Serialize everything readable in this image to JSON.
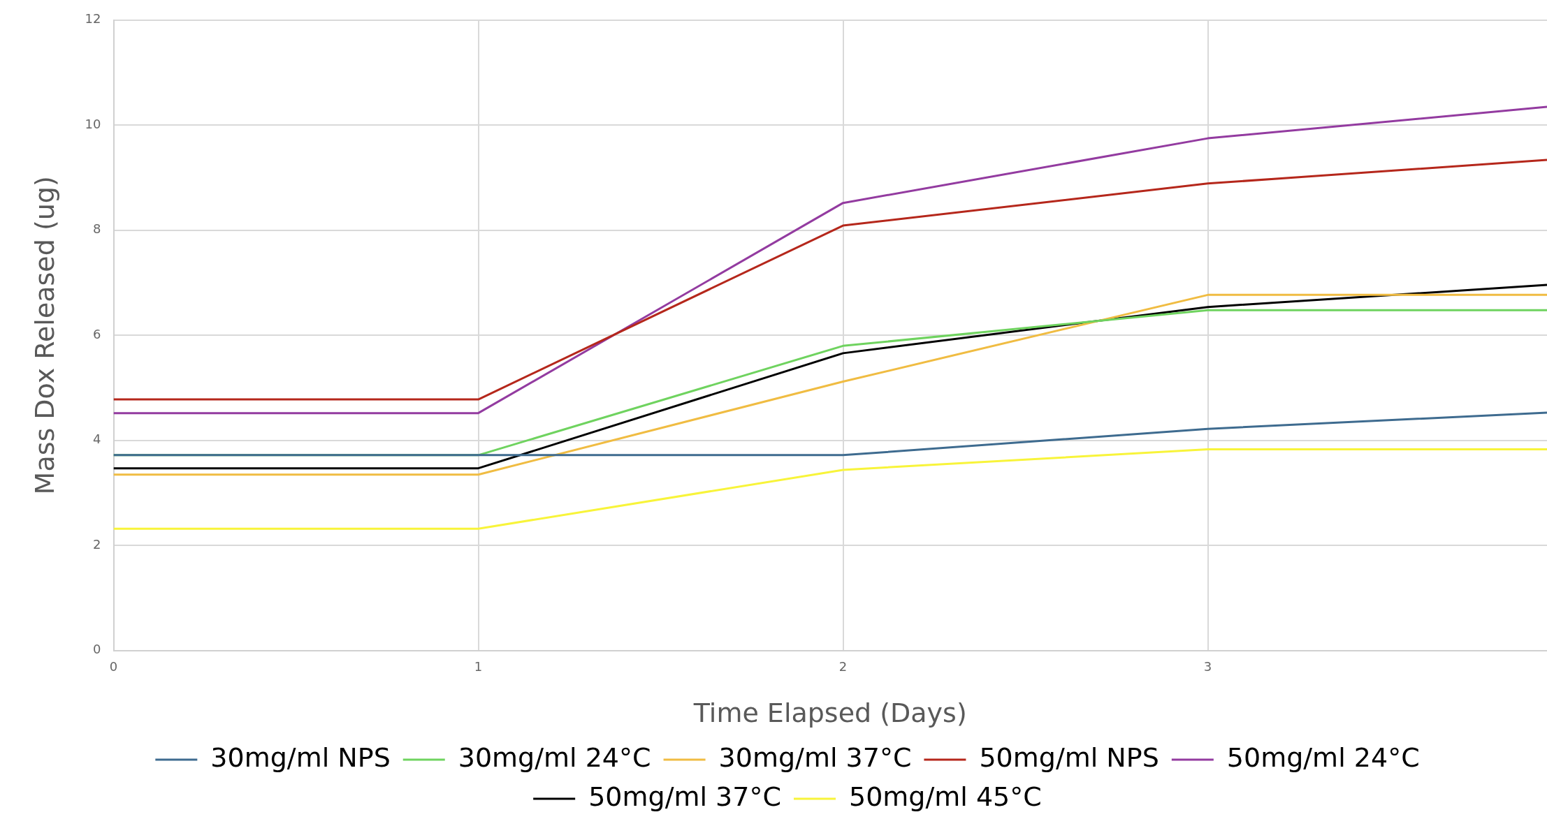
{
  "chart_data": {
    "type": "line",
    "xlabel": "Time Elapsed (Days)",
    "ylabel": "Mass Dox Released (ug)",
    "x": [
      0,
      1,
      2,
      3,
      3.93
    ],
    "xlim": [
      0,
      3.93
    ],
    "xticks": [
      0,
      1,
      2,
      3
    ],
    "ylim": [
      0,
      12
    ],
    "yticks": [
      0,
      2,
      4,
      6,
      8,
      10,
      12
    ],
    "grid": true,
    "legend": "bottom",
    "marker": "none",
    "line_style": "solid",
    "series": [
      {
        "name": "30mg/ml NPS",
        "color": "#3e6b8f",
        "values": [
          3.72,
          3.72,
          3.72,
          4.22,
          4.53
        ]
      },
      {
        "name": "30mg/ml 24°C",
        "color": "#6fd35f",
        "values": [
          3.72,
          3.72,
          5.8,
          6.48,
          6.48
        ]
      },
      {
        "name": "30mg/ml 37°C",
        "color": "#f0bc42",
        "values": [
          3.35,
          3.35,
          5.12,
          6.77,
          6.77
        ]
      },
      {
        "name": "50mg/ml NPS",
        "color": "#b5271b",
        "values": [
          4.78,
          4.78,
          8.09,
          8.89,
          9.34
        ]
      },
      {
        "name": "50mg/ml 24°C",
        "color": "#933ba0",
        "values": [
          4.52,
          4.52,
          8.52,
          9.75,
          10.35
        ]
      },
      {
        "name": "50mg/ml 37°C",
        "color": "#000000",
        "values": [
          3.47,
          3.47,
          5.66,
          6.54,
          6.96
        ]
      },
      {
        "name": "50mg/ml 45°C",
        "color": "#f8f43a",
        "values": [
          2.32,
          2.32,
          3.44,
          3.83,
          3.83
        ]
      }
    ]
  }
}
